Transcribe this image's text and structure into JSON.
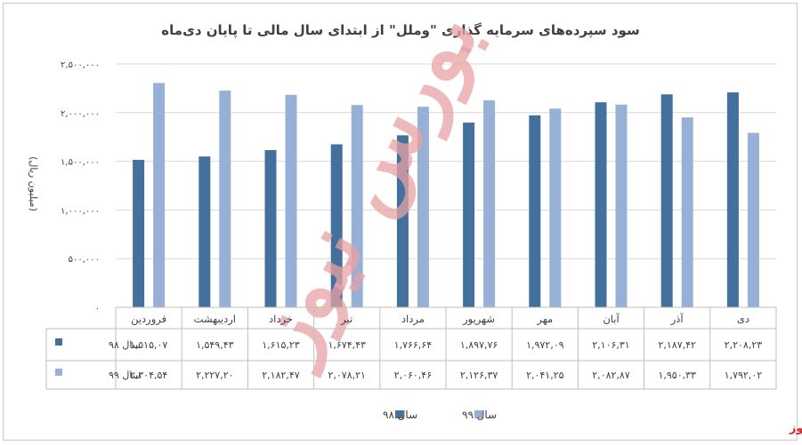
{
  "chart_data": {
    "type": "bar",
    "title": "سود سپرده‌های سرمایه گذاری \"وملل\" از ابتدای سال مالی تا پایان دی‌ماه",
    "ylabel": "(میلیون ریال)",
    "ylim": [
      0,
      2500000
    ],
    "yticks": [
      0,
      500000,
      1000000,
      1500000,
      2000000,
      2500000
    ],
    "ytick_labels": [
      "۰",
      "۵۰۰,۰۰۰",
      "۱,۰۰۰,۰۰۰",
      "۱,۵۰۰,۰۰۰",
      "۲,۰۰۰,۰۰۰",
      "۲,۵۰۰,۰۰۰"
    ],
    "grid": true,
    "legend": "bottom",
    "categories": [
      "دی",
      "آذر",
      "آبان",
      "مهر",
      "شهریور",
      "مرداد",
      "تیر",
      "خرداد",
      "اردیبهشت",
      "فروردین"
    ],
    "series": [
      {
        "name": "سال ۹۸",
        "color": "#44709c",
        "values": [
          2208230,
          2187420,
          2106310,
          1972090,
          1897760,
          1766640,
          1674430,
          1615230,
          1549430,
          1515070
        ],
        "labels": [
          "۲,۲۰۸,۲۳",
          "۲,۱۸۷,۴۲",
          "۲,۱۰۶,۳۱",
          "۱,۹۷۲,۰۹",
          "۱,۸۹۷,۷۶",
          "۱,۷۶۶,۶۴",
          "۱,۶۷۴,۴۳",
          "۱,۶۱۵,۲۳",
          "۱,۵۴۹,۴۳",
          "۱,۵۱۵,۰۷"
        ]
      },
      {
        "name": "سال ۹۹",
        "color": "#97b0d6",
        "values": [
          1792020,
          1950330,
          2082870,
          2041250,
          2126370,
          2060460,
          2078210,
          2182470,
          2227200,
          2304540
        ],
        "labels": [
          "۱,۷۹۲,۰۲",
          "۱,۹۵۰,۳۳",
          "۲,۰۸۲,۸۷",
          "۲,۰۴۱,۲۵",
          "۲,۱۲۶,۳۷",
          "۲,۰۶۰,۴۶",
          "۲,۰۷۸,۲۱",
          "۲,۱۸۲,۴۷",
          "۲,۲۲۷,۲۰",
          "۲,۳۰۴,۵۴"
        ]
      }
    ]
  },
  "watermark": {
    "text": "بورس نیوز",
    "color": "#e8a2a4"
  },
  "brand": {
    "text": "بورس نیوز",
    "color": "#d9262a"
  }
}
